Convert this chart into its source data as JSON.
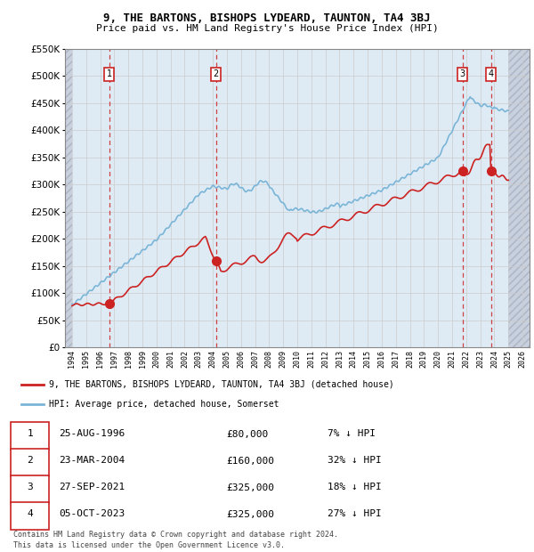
{
  "title": "9, THE BARTONS, BISHOPS LYDEARD, TAUNTON, TA4 3BJ",
  "subtitle": "Price paid vs. HM Land Registry's House Price Index (HPI)",
  "legend_line1": "9, THE BARTONS, BISHOPS LYDEARD, TAUNTON, TA4 3BJ (detached house)",
  "legend_line2": "HPI: Average price, detached house, Somerset",
  "footer_line1": "Contains HM Land Registry data © Crown copyright and database right 2024.",
  "footer_line2": "This data is licensed under the Open Government Licence v3.0.",
  "transactions": [
    {
      "num": 1,
      "date": "25-AUG-1996",
      "price": "£80,000",
      "pct": "7% ↓ HPI",
      "year": 1996.646
    },
    {
      "num": 2,
      "date": "23-MAR-2004",
      "price": "£160,000",
      "pct": "32% ↓ HPI",
      "year": 2004.225
    },
    {
      "num": 3,
      "date": "27-SEP-2021",
      "price": "£325,000",
      "pct": "18% ↓ HPI",
      "year": 2021.743
    },
    {
      "num": 4,
      "date": "05-OCT-2023",
      "price": "£325,000",
      "pct": "27% ↓ HPI",
      "year": 2023.756
    }
  ],
  "transaction_values": [
    80000,
    160000,
    325000,
    325000
  ],
  "hpi_color": "#7ab5d8",
  "price_color": "#cc2222",
  "grid_color": "#cccccc",
  "dashed_line_color": "#cc2222",
  "ylim": [
    0,
    550000
  ],
  "yticks": [
    0,
    50000,
    100000,
    150000,
    200000,
    250000,
    300000,
    350000,
    400000,
    450000,
    500000,
    550000
  ],
  "xlim_start": 1993.5,
  "xlim_end": 2026.5,
  "xtick_years": [
    1994,
    1995,
    1996,
    1997,
    1998,
    1999,
    2000,
    2001,
    2002,
    2003,
    2004,
    2005,
    2006,
    2007,
    2008,
    2009,
    2010,
    2011,
    2012,
    2013,
    2014,
    2015,
    2016,
    2017,
    2018,
    2019,
    2020,
    2021,
    2022,
    2023,
    2024,
    2025,
    2026
  ],
  "chart_bg": "#e8f0f8",
  "hatch_bg": "#c8d0de"
}
